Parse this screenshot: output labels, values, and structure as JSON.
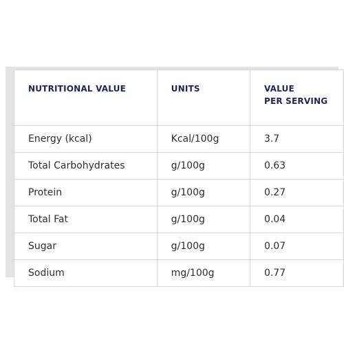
{
  "table": {
    "headers": {
      "nutritional_value": "NUTRITIONAL VALUE",
      "units": "UNITS",
      "value_line1": "VALUE",
      "value_line2": "PER SERVING"
    },
    "rows": [
      {
        "name": "Energy (kcal)",
        "unit": "Kcal/100g",
        "value": "3.7"
      },
      {
        "name": "Total Carbohydrates",
        "unit": "g/100g",
        "value": "0.63"
      },
      {
        "name": "Protein",
        "unit": "g/100g",
        "value": "0.27"
      },
      {
        "name": "Total Fat",
        "unit": "g/100g",
        "value": "0.04"
      },
      {
        "name": "Sugar",
        "unit": "g/100g",
        "value": "0.07"
      },
      {
        "name": "Sodium",
        "unit": "mg/100g",
        "value": "0.77"
      }
    ]
  },
  "colors": {
    "header_text": "#1f2555",
    "body_text": "#2d2d2d",
    "border": "#d8d8d8",
    "frame_background": "#e3e3e3"
  }
}
